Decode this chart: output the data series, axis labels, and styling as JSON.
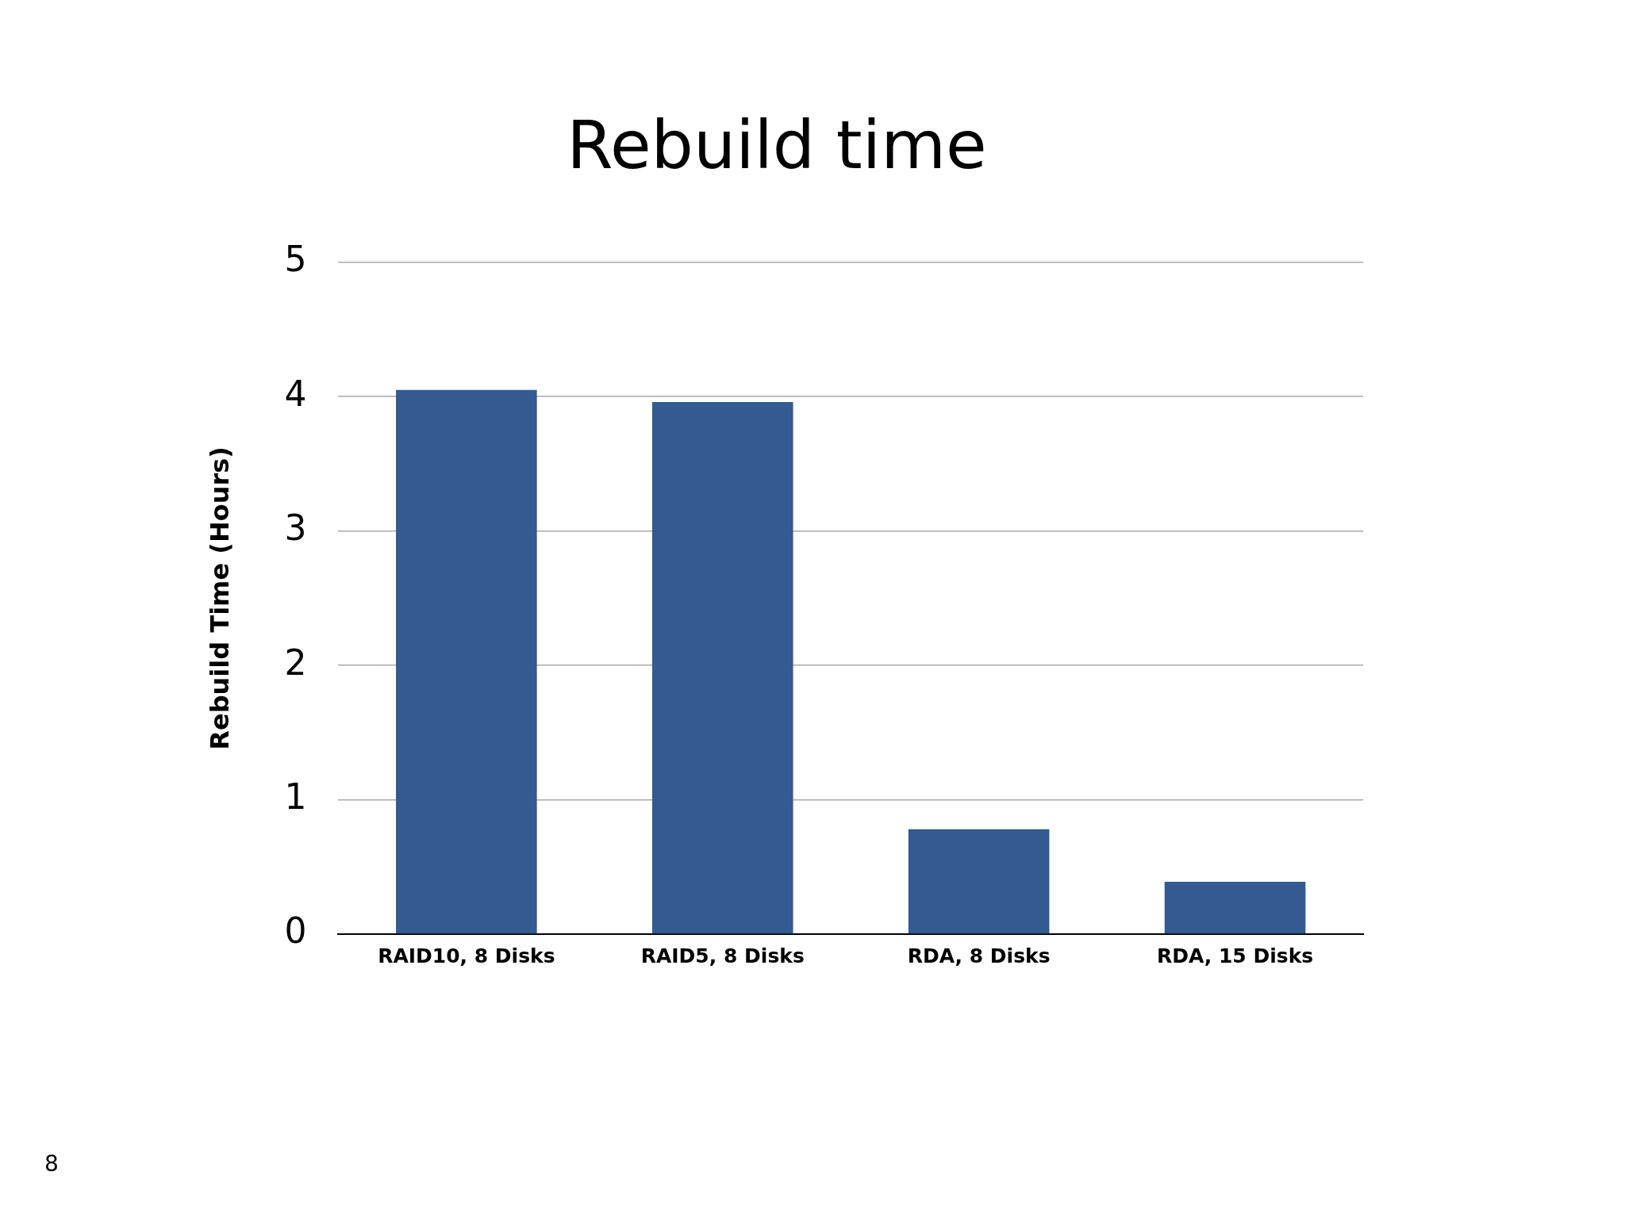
{
  "chart_data": {
    "type": "bar",
    "title": "Rebuild time",
    "ylabel": "Rebuild Time (Hours)",
    "categories": [
      "RAID10, 8 Disks",
      "RAID5, 8 Disks",
      "RDA, 8 Disks",
      "RDA, 15 Disks"
    ],
    "values": [
      4.05,
      3.96,
      0.78,
      0.39
    ],
    "color": "#335a91",
    "ylim": [
      0,
      5
    ],
    "yticks": [
      0,
      1,
      2,
      3,
      4,
      5
    ],
    "grid": "y",
    "legend": false,
    "annotations": [
      "8"
    ]
  }
}
